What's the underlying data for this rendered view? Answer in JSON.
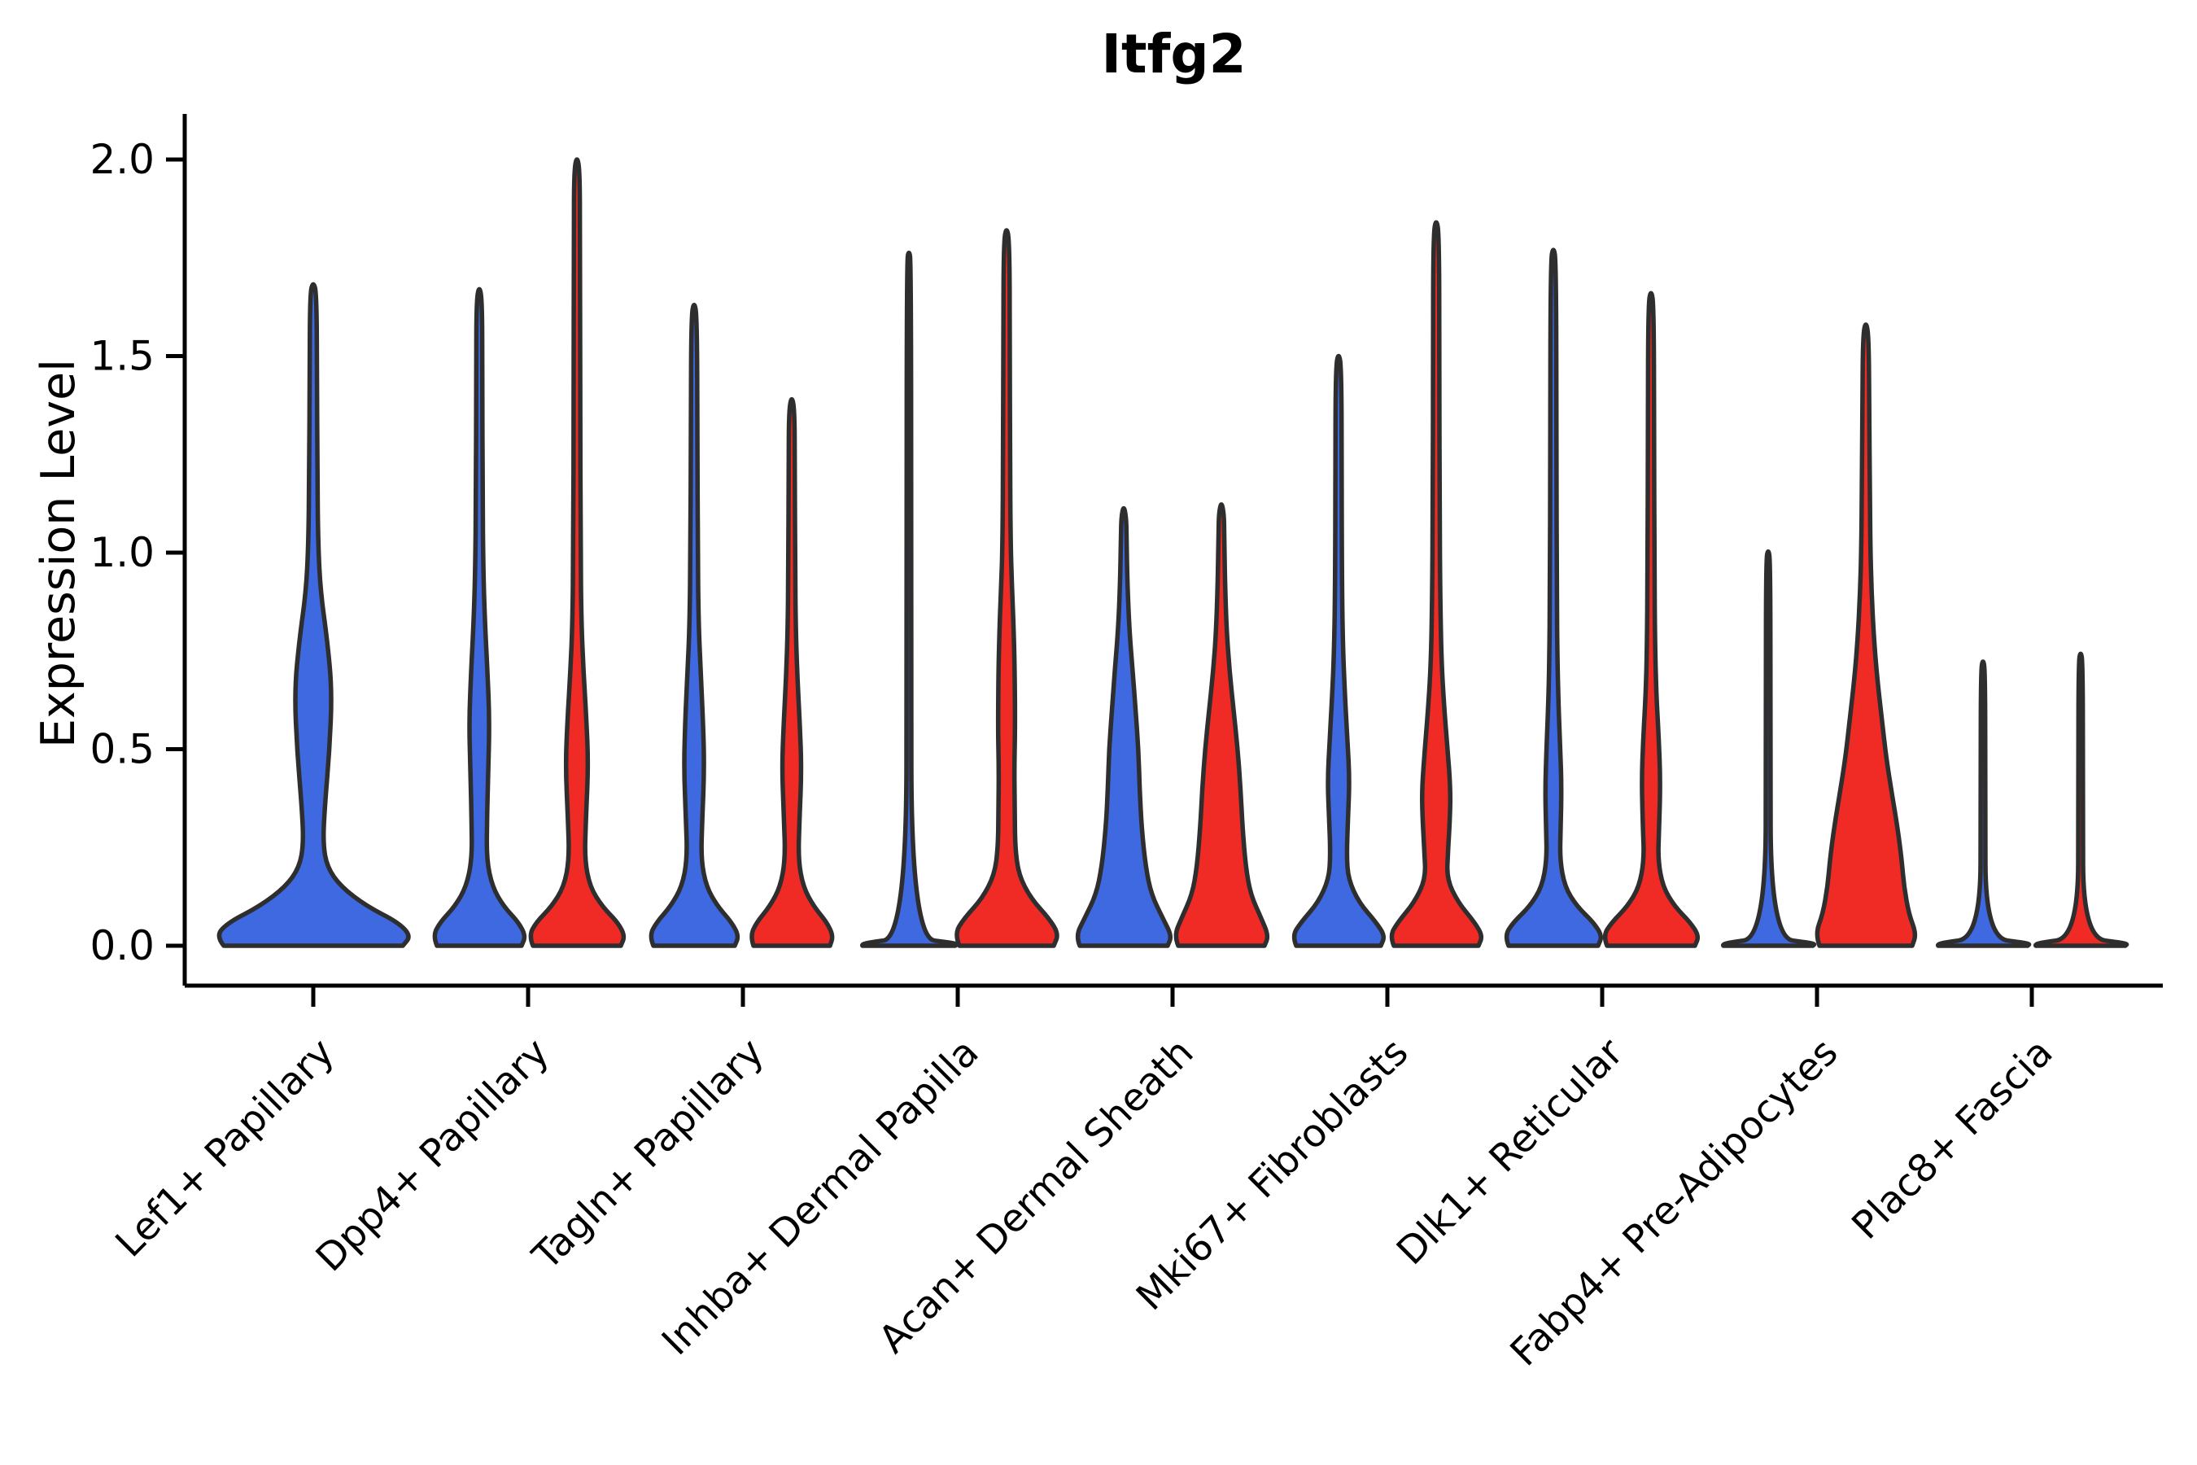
{
  "title": "Itfg2",
  "y_axis": {
    "label": "Expression Level",
    "tick_labels": [
      "0.0",
      "0.5",
      "1.0",
      "1.5",
      "2.0"
    ],
    "tick_values": [
      0.0,
      0.5,
      1.0,
      1.5,
      2.0
    ]
  },
  "categories": [
    "Lef1+ Papillary",
    "Dpp4+ Papillary",
    "Tagln+ Papillary",
    "Inhba+ Dermal Papilla",
    "Acan+ Dermal Sheath",
    "Mki67+ Fibroblasts",
    "Dlk1+ Reticular",
    "Fabp4+ Pre-Adipocytes",
    "Plac8+ Fascia"
  ],
  "colors": {
    "split_blue": "#3E69E1",
    "split_red": "#F02B26",
    "violin_outline": "#2E2E2E",
    "axis": "#000000",
    "background": "#FFFFFF"
  },
  "chart_data": {
    "type": "violin",
    "title": "Itfg2",
    "xlabel": "",
    "ylabel": "Expression Level",
    "ylim": [
      0,
      2.0
    ],
    "yticks": [
      0.0,
      0.5,
      1.0,
      1.5,
      2.0
    ],
    "grid": false,
    "legend": "none",
    "split_colors": {
      "blue": "#3E69E1",
      "red": "#F02B26"
    },
    "categories": [
      "Lef1+ Papillary",
      "Dpp4+ Papillary",
      "Tagln+ Papillary",
      "Inhba+ Dermal Papilla",
      "Acan+ Dermal Sheath",
      "Mki67+ Fibroblasts",
      "Dlk1+ Reticular",
      "Fabp4+ Pre-Adipocytes",
      "Plac8+ Fascia"
    ],
    "violins": [
      {
        "category": "Lef1+ Papillary",
        "split": "blue",
        "layout": "single-wide",
        "max_expression": 1.69,
        "center_x": 385,
        "profile": [
          [
            0,
            110
          ],
          [
            0.025,
            120
          ],
          [
            0.06,
            104
          ],
          [
            0.1,
            66
          ],
          [
            0.15,
            34
          ],
          [
            0.2,
            17
          ],
          [
            0.26,
            12
          ],
          [
            0.35,
            14
          ],
          [
            0.5,
            20
          ],
          [
            0.65,
            23
          ],
          [
            0.78,
            17
          ],
          [
            0.9,
            9
          ],
          [
            1.02,
            6
          ],
          [
            1.2,
            5
          ],
          [
            1.45,
            4.5
          ],
          [
            1.66,
            4
          ]
        ]
      },
      {
        "category": "Dpp4+ Papillary",
        "split": "blue",
        "layout": "pair-left",
        "max_expression": 1.68,
        "center_x": 589,
        "profile": [
          [
            0,
            52
          ],
          [
            0.025,
            57
          ],
          [
            0.06,
            48
          ],
          [
            0.1,
            30
          ],
          [
            0.15,
            16
          ],
          [
            0.22,
            9
          ],
          [
            0.32,
            9.5
          ],
          [
            0.45,
            11
          ],
          [
            0.57,
            12.5
          ],
          [
            0.7,
            10
          ],
          [
            0.82,
            7
          ],
          [
            0.95,
            5
          ],
          [
            1.15,
            4
          ],
          [
            1.45,
            3.8
          ],
          [
            1.64,
            3.5
          ]
        ]
      },
      {
        "category": "Dpp4+ Papillary",
        "split": "red",
        "layout": "pair-right",
        "max_expression": 2.01,
        "center_x": 709,
        "profile": [
          [
            0,
            54
          ],
          [
            0.025,
            59
          ],
          [
            0.06,
            50
          ],
          [
            0.1,
            31
          ],
          [
            0.15,
            16
          ],
          [
            0.22,
            9.5
          ],
          [
            0.32,
            11
          ],
          [
            0.46,
            14
          ],
          [
            0.58,
            11.5
          ],
          [
            0.7,
            8
          ],
          [
            0.82,
            5.5
          ],
          [
            1.0,
            4.5
          ],
          [
            1.4,
            4
          ],
          [
            1.8,
            3.8
          ],
          [
            1.97,
            3.5
          ]
        ]
      },
      {
        "category": "Tagln+ Papillary",
        "split": "blue",
        "layout": "pair-left",
        "max_expression": 1.64,
        "center_x": 853,
        "profile": [
          [
            0,
            50
          ],
          [
            0.025,
            55
          ],
          [
            0.06,
            46
          ],
          [
            0.1,
            29
          ],
          [
            0.15,
            15
          ],
          [
            0.22,
            8.5
          ],
          [
            0.32,
            10
          ],
          [
            0.45,
            12.5
          ],
          [
            0.57,
            11
          ],
          [
            0.7,
            8
          ],
          [
            0.82,
            5.5
          ],
          [
            1.0,
            4.5
          ],
          [
            1.3,
            4
          ],
          [
            1.6,
            3.5
          ]
        ]
      },
      {
        "category": "Tagln+ Papillary",
        "split": "red",
        "layout": "pair-right",
        "max_expression": 1.4,
        "center_x": 973,
        "profile": [
          [
            0,
            47
          ],
          [
            0.025,
            51
          ],
          [
            0.06,
            43
          ],
          [
            0.1,
            27
          ],
          [
            0.15,
            14
          ],
          [
            0.22,
            8
          ],
          [
            0.32,
            9.5
          ],
          [
            0.45,
            12
          ],
          [
            0.56,
            10
          ],
          [
            0.68,
            7
          ],
          [
            0.8,
            5
          ],
          [
            0.95,
            4.2
          ],
          [
            1.2,
            3.8
          ],
          [
            1.36,
            3.5
          ]
        ]
      },
      {
        "category": "Inhba+ Dermal Papilla",
        "split": "blue",
        "layout": "pair-left-collapsed",
        "max_expression": 1.77,
        "center_x": 1117,
        "profile": [
          [
            0,
            57
          ],
          [
            0.006,
            60
          ],
          [
            0.02,
            3.2
          ],
          [
            0.9,
            2.8
          ],
          [
            1.74,
            2.6
          ]
        ]
      },
      {
        "category": "Inhba+ Dermal Papilla",
        "split": "red",
        "layout": "pair-right",
        "max_expression": 1.83,
        "center_x": 1237,
        "profile": [
          [
            0,
            58
          ],
          [
            0.03,
            64
          ],
          [
            0.07,
            52
          ],
          [
            0.12,
            30
          ],
          [
            0.18,
            15
          ],
          [
            0.25,
            10.5
          ],
          [
            0.35,
            10
          ],
          [
            0.45,
            9.5
          ],
          [
            0.55,
            10.5
          ],
          [
            0.7,
            10
          ],
          [
            0.82,
            8.5
          ],
          [
            0.92,
            6.5
          ],
          [
            1.02,
            5
          ],
          [
            1.25,
            4.2
          ],
          [
            1.55,
            4
          ],
          [
            1.79,
            3.5
          ]
        ]
      },
      {
        "category": "Acan+ Dermal Sheath",
        "split": "blue",
        "layout": "pair-left",
        "max_expression": 1.12,
        "center_x": 1381,
        "profile": [
          [
            0,
            54
          ],
          [
            0.025,
            59
          ],
          [
            0.07,
            48
          ],
          [
            0.13,
            34
          ],
          [
            0.2,
            27
          ],
          [
            0.3,
            22
          ],
          [
            0.4,
            19.5
          ],
          [
            0.5,
            18
          ],
          [
            0.6,
            14.5
          ],
          [
            0.7,
            11
          ],
          [
            0.8,
            7
          ],
          [
            0.92,
            4.5
          ],
          [
            1.03,
            3.5
          ],
          [
            1.09,
            3
          ]
        ]
      },
      {
        "category": "Acan+ Dermal Sheath",
        "split": "red",
        "layout": "pair-right",
        "max_expression": 1.13,
        "center_x": 1501,
        "profile": [
          [
            0,
            53
          ],
          [
            0.025,
            58
          ],
          [
            0.07,
            49
          ],
          [
            0.13,
            36
          ],
          [
            0.2,
            30
          ],
          [
            0.3,
            26
          ],
          [
            0.4,
            23.5
          ],
          [
            0.5,
            20
          ],
          [
            0.6,
            15
          ],
          [
            0.7,
            10
          ],
          [
            0.8,
            6.5
          ],
          [
            0.92,
            4.5
          ],
          [
            1.05,
            3.5
          ],
          [
            1.1,
            3
          ]
        ]
      },
      {
        "category": "Mki67+ Fibroblasts",
        "split": "blue",
        "layout": "pair-left",
        "max_expression": 1.51,
        "center_x": 1645,
        "profile": [
          [
            0,
            52
          ],
          [
            0.025,
            57
          ],
          [
            0.06,
            46
          ],
          [
            0.11,
            25
          ],
          [
            0.17,
            12
          ],
          [
            0.23,
            10
          ],
          [
            0.32,
            11.5
          ],
          [
            0.42,
            13.5
          ],
          [
            0.52,
            11
          ],
          [
            0.63,
            8
          ],
          [
            0.75,
            5.5
          ],
          [
            0.92,
            4.2
          ],
          [
            1.2,
            3.8
          ],
          [
            1.47,
            3.5
          ]
        ]
      },
      {
        "category": "Mki67+ Fibroblasts",
        "split": "red",
        "layout": "pair-right",
        "max_expression": 1.85,
        "center_x": 1765,
        "profile": [
          [
            0,
            52
          ],
          [
            0.025,
            57
          ],
          [
            0.06,
            47
          ],
          [
            0.11,
            27
          ],
          [
            0.17,
            13
          ],
          [
            0.24,
            14.5
          ],
          [
            0.33,
            17
          ],
          [
            0.4,
            17.5
          ],
          [
            0.5,
            14
          ],
          [
            0.6,
            10
          ],
          [
            0.72,
            6.5
          ],
          [
            0.88,
            5
          ],
          [
            1.1,
            4.2
          ],
          [
            1.5,
            3.8
          ],
          [
            1.81,
            3.5
          ]
        ]
      },
      {
        "category": "Dlk1+ Reticular",
        "split": "blue",
        "layout": "pair-left",
        "max_expression": 1.78,
        "center_x": 1909,
        "profile": [
          [
            0,
            55
          ],
          [
            0.025,
            60
          ],
          [
            0.06,
            49
          ],
          [
            0.1,
            29
          ],
          [
            0.15,
            14
          ],
          [
            0.22,
            8
          ],
          [
            0.3,
            9
          ],
          [
            0.4,
            10
          ],
          [
            0.5,
            8.5
          ],
          [
            0.6,
            6.5
          ],
          [
            0.72,
            5
          ],
          [
            0.9,
            4.2
          ],
          [
            1.25,
            3.8
          ],
          [
            1.74,
            3.4
          ]
        ]
      },
      {
        "category": "Dlk1+ Reticular",
        "split": "red",
        "layout": "pair-right",
        "max_expression": 1.67,
        "center_x": 2029,
        "profile": [
          [
            0,
            54
          ],
          [
            0.025,
            59
          ],
          [
            0.06,
            48
          ],
          [
            0.1,
            29
          ],
          [
            0.15,
            14.5
          ],
          [
            0.22,
            8.5
          ],
          [
            0.3,
            10
          ],
          [
            0.42,
            11.5
          ],
          [
            0.53,
            9.5
          ],
          [
            0.64,
            6.5
          ],
          [
            0.76,
            5
          ],
          [
            0.95,
            4.2
          ],
          [
            1.3,
            3.8
          ],
          [
            1.63,
            3.4
          ]
        ]
      },
      {
        "category": "Fabp4+ Pre-Adipocytes",
        "split": "blue",
        "layout": "pair-left-collapsed",
        "max_expression": 1.01,
        "center_x": 2173,
        "profile": [
          [
            0,
            55
          ],
          [
            0.006,
            58
          ],
          [
            0.02,
            3.2
          ],
          [
            0.6,
            2.8
          ],
          [
            0.98,
            2.6
          ]
        ]
      },
      {
        "category": "Fabp4+ Pre-Adipocytes",
        "split": "red",
        "layout": "pair-right",
        "max_expression": 1.59,
        "center_x": 2293,
        "profile": [
          [
            0,
            57
          ],
          [
            0.03,
            62
          ],
          [
            0.08,
            53
          ],
          [
            0.15,
            47
          ],
          [
            0.22,
            44
          ],
          [
            0.3,
            39
          ],
          [
            0.4,
            31
          ],
          [
            0.48,
            25
          ],
          [
            0.57,
            20
          ],
          [
            0.68,
            14
          ],
          [
            0.78,
            10
          ],
          [
            0.9,
            7
          ],
          [
            1.02,
            5.5
          ],
          [
            1.15,
            5
          ],
          [
            1.35,
            4.2
          ],
          [
            1.55,
            3.6
          ]
        ]
      },
      {
        "category": "Plac8+ Fascia",
        "split": "blue",
        "layout": "pair-left-collapsed",
        "max_expression": 0.73,
        "center_x": 2437,
        "profile": [
          [
            0,
            55
          ],
          [
            0.006,
            58
          ],
          [
            0.02,
            3.2
          ],
          [
            0.4,
            2.8
          ],
          [
            0.7,
            2.6
          ]
        ]
      },
      {
        "category": "Plac8+ Fascia",
        "split": "red",
        "layout": "pair-right-collapsed",
        "max_expression": 0.75,
        "center_x": 2557,
        "profile": [
          [
            0,
            55
          ],
          [
            0.006,
            58
          ],
          [
            0.02,
            3.2
          ],
          [
            0.4,
            2.8
          ],
          [
            0.72,
            2.6
          ]
        ]
      }
    ]
  }
}
